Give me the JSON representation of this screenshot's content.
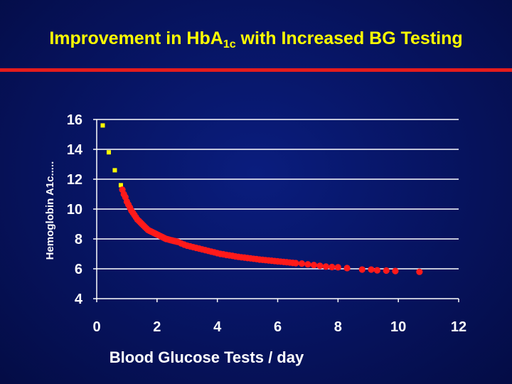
{
  "slide": {
    "title_main": "Improvement in Hb",
    "title_a": "A",
    "title_sub": "1c",
    "title_rest": " with Increased BG Testing"
  },
  "colors": {
    "title": "#ffff00",
    "rule": "#e51c1c",
    "grid": "#ffffff",
    "red_points": "#ff1a1a",
    "yellow_points": "#ffff00"
  },
  "chart_data": {
    "type": "scatter",
    "xlabel": "Blood Glucose Tests / day",
    "ylabel": "Hemoglobin A1c.....",
    "xlim": [
      0,
      12
    ],
    "ylim": [
      4,
      16
    ],
    "xticks": [
      0,
      2,
      4,
      6,
      8,
      10,
      12
    ],
    "yticks": [
      4,
      6,
      8,
      10,
      12,
      14,
      16
    ],
    "grid": "horizontal",
    "series": [
      {
        "marker": "square",
        "color": "#ffff00",
        "x": [
          0.2,
          0.4,
          0.6,
          0.8
        ],
        "y": [
          15.6,
          13.8,
          12.6,
          11.6
        ]
      },
      {
        "marker": "circle",
        "color": "#ff1a1a",
        "x": [
          0.85,
          0.9,
          0.95,
          1.0,
          1.05,
          1.1,
          1.15,
          1.2,
          1.25,
          1.3,
          1.35,
          1.4,
          1.45,
          1.5,
          1.55,
          1.6,
          1.65,
          1.7,
          1.75,
          1.8,
          1.85,
          1.9,
          1.95,
          2.0,
          2.05,
          2.1,
          2.15,
          2.2,
          2.25,
          2.3,
          2.35,
          2.4,
          2.45,
          2.5,
          2.55,
          2.6,
          2.65,
          2.7,
          2.8,
          2.9,
          3.0,
          3.1,
          3.2,
          3.3,
          3.4,
          3.5,
          3.6,
          3.7,
          3.8,
          3.9,
          4.0,
          4.1,
          4.2,
          4.3,
          4.4,
          4.5,
          4.6,
          4.7,
          4.8,
          4.9,
          5.0,
          5.1,
          5.2,
          5.3,
          5.4,
          5.5,
          5.6,
          5.7,
          5.8,
          5.9,
          6.0,
          6.1,
          6.2,
          6.3,
          6.4,
          6.5,
          6.6,
          6.8,
          7.0,
          7.2,
          7.4,
          7.6,
          7.8,
          8.0,
          8.3,
          8.8,
          9.1,
          9.3,
          9.6,
          9.9,
          10.7
        ],
        "y": [
          11.3,
          11.0,
          10.8,
          10.5,
          10.3,
          10.1,
          9.9,
          9.75,
          9.6,
          9.45,
          9.3,
          9.2,
          9.1,
          9.0,
          8.9,
          8.8,
          8.7,
          8.6,
          8.55,
          8.5,
          8.45,
          8.4,
          8.35,
          8.3,
          8.25,
          8.2,
          8.15,
          8.1,
          8.05,
          8.0,
          7.98,
          7.95,
          7.92,
          7.9,
          7.87,
          7.85,
          7.82,
          7.8,
          7.7,
          7.62,
          7.55,
          7.5,
          7.45,
          7.4,
          7.35,
          7.3,
          7.25,
          7.2,
          7.15,
          7.1,
          7.05,
          7.0,
          6.97,
          6.93,
          6.9,
          6.87,
          6.83,
          6.8,
          6.77,
          6.75,
          6.72,
          6.7,
          6.67,
          6.65,
          6.62,
          6.6,
          6.58,
          6.56,
          6.54,
          6.52,
          6.5,
          6.48,
          6.46,
          6.44,
          6.42,
          6.4,
          6.38,
          6.35,
          6.3,
          6.25,
          6.2,
          6.15,
          6.12,
          6.1,
          6.05,
          5.95,
          5.95,
          5.9,
          5.88,
          5.85,
          5.8
        ]
      }
    ]
  }
}
